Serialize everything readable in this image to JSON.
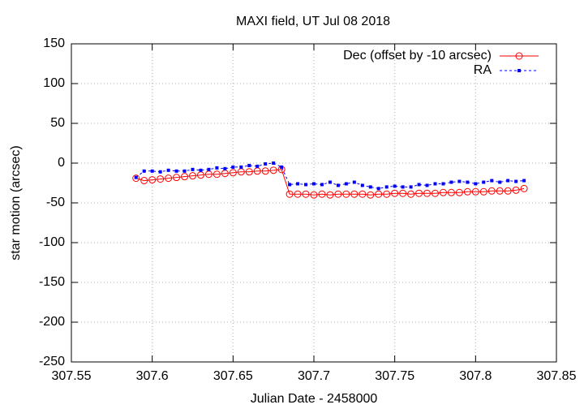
{
  "chart_data": {
    "type": "line",
    "title": "MAXI field, UT Jul 08 2018",
    "x_label": "Julian Date - 2458000",
    "y_label": "star motion (arcsec)",
    "x": [
      307.59,
      307.595,
      307.6,
      307.605,
      307.61,
      307.615,
      307.62,
      307.625,
      307.63,
      307.635,
      307.64,
      307.645,
      307.65,
      307.655,
      307.66,
      307.665,
      307.67,
      307.675,
      307.68,
      307.685,
      307.69,
      307.695,
      307.7,
      307.705,
      307.71,
      307.715,
      307.72,
      307.725,
      307.73,
      307.735,
      307.74,
      307.745,
      307.75,
      307.755,
      307.76,
      307.765,
      307.77,
      307.775,
      307.78,
      307.785,
      307.79,
      307.795,
      307.8,
      307.805,
      307.81,
      307.815,
      307.82,
      307.825,
      307.83
    ],
    "series": [
      {
        "name": "Dec (offset by -10 arcsec)",
        "color": "#ff0000",
        "marker": "circle",
        "dashed": false,
        "values": [
          -19,
          -22,
          -21,
          -20,
          -19,
          -18,
          -17,
          -16,
          -15,
          -14,
          -14,
          -13,
          -12,
          -11,
          -11,
          -10,
          -10,
          -9,
          -8,
          -39,
          -39,
          -39,
          -40,
          -39,
          -40,
          -39,
          -39,
          -39,
          -39,
          -40,
          -39,
          -39,
          -38,
          -38,
          -39,
          -38,
          -38,
          -38,
          -37,
          -37,
          -37,
          -36,
          -36,
          -36,
          -35,
          -35,
          -35,
          -34,
          -32
        ]
      },
      {
        "name": "RA",
        "color": "#0000ff",
        "marker": "square",
        "dashed": true,
        "values": [
          -18,
          -10,
          -10,
          -11,
          -9,
          -10,
          -10,
          -8,
          -9,
          -8,
          -6,
          -7,
          -5,
          -5,
          -3,
          -4,
          -1,
          0,
          -5,
          -27,
          -26,
          -27,
          -26,
          -27,
          -24,
          -28,
          -26,
          -24,
          -28,
          -30,
          -32,
          -30,
          -29,
          -30,
          -30,
          -27,
          -28,
          -26,
          -26,
          -24,
          -23,
          -24,
          -26,
          -24,
          -22,
          -24,
          -22,
          -23,
          -22
        ]
      }
    ],
    "xlim": [
      307.55,
      307.85
    ],
    "xticks": [
      307.55,
      307.6,
      307.65,
      307.7,
      307.75,
      307.8,
      307.85
    ],
    "ylim": [
      -250,
      150
    ],
    "yticks": [
      -250,
      -200,
      -150,
      -100,
      -50,
      0,
      50,
      100,
      150
    ],
    "grid": true,
    "legend": "top-right"
  }
}
